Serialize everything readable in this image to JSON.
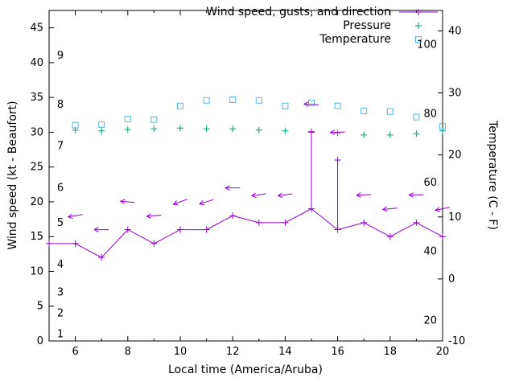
{
  "chart_data": {
    "type": "line",
    "title": "",
    "xlabel": "Local time (America/Aruba)",
    "ylabel_left": "Wind speed (kt - Beaufort)",
    "ylabel_right": "Temperature (C - F)",
    "legend": [
      "Wind speed, gusts, and direction",
      "Pressure",
      "Temperature"
    ],
    "colors": {
      "wind": "#9400d3",
      "pressure": "#009e73",
      "temperature": "#56b4e9"
    },
    "xlim": [
      5,
      20
    ],
    "ylim_left": [
      0,
      47.5
    ],
    "ylim_right": [
      -10,
      43.3
    ],
    "x_ticks": [
      6,
      8,
      10,
      12,
      14,
      16,
      18,
      20
    ],
    "x_minor_step": 1,
    "y_ticks_left": [
      0,
      5,
      10,
      15,
      20,
      25,
      30,
      35,
      40,
      45
    ],
    "y_ticks_right": [
      -10,
      0,
      10,
      20,
      30,
      40
    ],
    "beaufort_labels": [
      [
        1,
        1
      ],
      [
        2,
        4
      ],
      [
        3,
        7
      ],
      [
        4,
        11
      ],
      [
        5,
        17
      ],
      [
        6,
        22
      ],
      [
        7,
        28
      ],
      [
        8,
        34
      ],
      [
        9,
        41
      ]
    ],
    "fahrenheit_labels": [
      20,
      40,
      60,
      80,
      100
    ],
    "grid": false,
    "legend_position": "top-right-inside",
    "series": {
      "wind": {
        "x": [
          5,
          6,
          7,
          8,
          9,
          10,
          11,
          12,
          13,
          14,
          15,
          16,
          17,
          18,
          19,
          20
        ],
        "speed": [
          14,
          14,
          12,
          16,
          14,
          16,
          16,
          18,
          17,
          17,
          19,
          16,
          17,
          15,
          17,
          15
        ],
        "gust": [
          14,
          14,
          12,
          16,
          14,
          16,
          16,
          18,
          17,
          17,
          30,
          26,
          17,
          15,
          17,
          15
        ]
      },
      "direction": {
        "x": [
          6,
          7,
          8,
          9,
          10,
          11,
          12,
          13,
          14,
          15,
          16,
          17,
          18,
          19,
          20
        ],
        "value": [
          18,
          16,
          20,
          18,
          20,
          20,
          22,
          21,
          21,
          34,
          30,
          21,
          19,
          21,
          19
        ],
        "angle_deg": [
          170,
          180,
          185,
          175,
          160,
          162,
          180,
          172,
          172,
          183,
          178,
          176,
          174,
          178,
          168
        ]
      },
      "pressure": {
        "x": [
          6,
          7,
          8,
          9,
          10,
          11,
          12,
          13,
          14,
          15,
          16,
          17,
          18,
          19,
          20
        ],
        "values": [
          30.3,
          30.2,
          30.4,
          30.5,
          30.6,
          30.5,
          30.5,
          30.3,
          30.2,
          30.1,
          29.9,
          29.6,
          29.6,
          29.8,
          30.2
        ]
      },
      "temperature": {
        "x": [
          6,
          7,
          8,
          9,
          10,
          11,
          12,
          13,
          14,
          15,
          16,
          17,
          18,
          19,
          20
        ],
        "values_c": [
          24.8,
          24.9,
          25.8,
          25.7,
          27.9,
          28.8,
          28.9,
          28.8,
          27.9,
          28.4,
          27.9,
          27.1,
          27.0,
          26.1,
          24.6
        ]
      }
    }
  }
}
